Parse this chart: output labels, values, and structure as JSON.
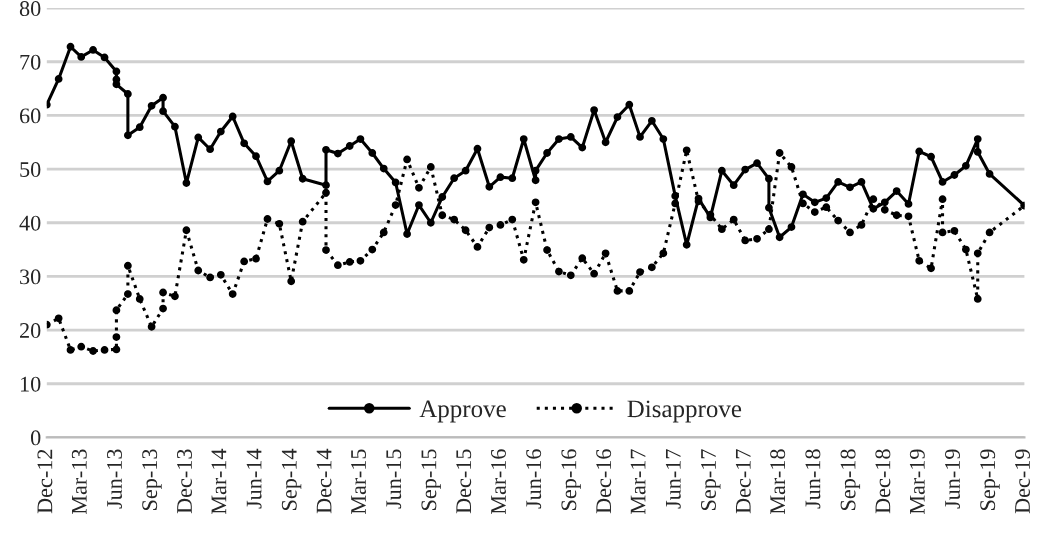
{
  "chart_data": {
    "type": "line",
    "xlim": [
      "2012-12",
      "2019-12"
    ],
    "xticks": [
      {
        "value": "2012-12",
        "label": "Dec-12"
      },
      {
        "value": "2013-03",
        "label": "Mar-13"
      },
      {
        "value": "2013-06",
        "label": "Jun-13"
      },
      {
        "value": "2013-09",
        "label": "Sep-13"
      },
      {
        "value": "2013-12",
        "label": "Dec-13"
      },
      {
        "value": "2014-03",
        "label": "Mar-14"
      },
      {
        "value": "2014-06",
        "label": "Jun-14"
      },
      {
        "value": "2014-09",
        "label": "Sep-14"
      },
      {
        "value": "2014-12",
        "label": "Dec-14"
      },
      {
        "value": "2015-03",
        "label": "Mar-15"
      },
      {
        "value": "2015-06",
        "label": "Jun-15"
      },
      {
        "value": "2015-09",
        "label": "Sep-15"
      },
      {
        "value": "2015-12",
        "label": "Dec-15"
      },
      {
        "value": "2016-03",
        "label": "Mar-16"
      },
      {
        "value": "2016-06",
        "label": "Jun-16"
      },
      {
        "value": "2016-09",
        "label": "Sep-16"
      },
      {
        "value": "2016-12",
        "label": "Dec-16"
      },
      {
        "value": "2017-03",
        "label": "Mar-17"
      },
      {
        "value": "2017-06",
        "label": "Jun-17"
      },
      {
        "value": "2017-09",
        "label": "Sep-17"
      },
      {
        "value": "2017-12",
        "label": "Dec-17"
      },
      {
        "value": "2018-03",
        "label": "Mar-18"
      },
      {
        "value": "2018-06",
        "label": "Jun-18"
      },
      {
        "value": "2018-09",
        "label": "Sep-18"
      },
      {
        "value": "2018-12",
        "label": "Dec-18"
      },
      {
        "value": "2019-03",
        "label": "Mar-19"
      },
      {
        "value": "2019-06",
        "label": "Jun-19"
      },
      {
        "value": "2019-09",
        "label": "Sep-19"
      },
      {
        "value": "2019-12",
        "label": "Dec-19"
      }
    ],
    "ylim": [
      0,
      80
    ],
    "yticks": [
      0,
      10,
      20,
      30,
      40,
      50,
      60,
      70,
      80
    ],
    "grid": "y",
    "legend": "bottom",
    "marker": "circle",
    "series": [
      {
        "name": "Approve",
        "color": "#000000",
        "line_style": "solid",
        "x": [
          "2012-12",
          "2013-01",
          "2013-02",
          "2013-03",
          "2013-04",
          "2013-05",
          "2013-06",
          "2013-06",
          "2013-06",
          "2013-07",
          "2013-07",
          "2013-08",
          "2013-09",
          "2013-10",
          "2013-10",
          "2013-11",
          "2013-12",
          "2014-01",
          "2014-02",
          "2014-03",
          "2014-04",
          "2014-05",
          "2014-06",
          "2014-07",
          "2014-08",
          "2014-09",
          "2014-10",
          "2014-12",
          "2014-12",
          "2015-01",
          "2015-02",
          "2015-03",
          "2015-04",
          "2015-05",
          "2015-06",
          "2015-07",
          "2015-08",
          "2015-09",
          "2015-10",
          "2015-11",
          "2015-12",
          "2016-01",
          "2016-02",
          "2016-03",
          "2016-04",
          "2016-05",
          "2016-06",
          "2016-06",
          "2016-07",
          "2016-08",
          "2016-09",
          "2016-10",
          "2016-11",
          "2016-12",
          "2017-01",
          "2017-02",
          "2017-03",
          "2017-04",
          "2017-05",
          "2017-06",
          "2017-07",
          "2017-08",
          "2017-09",
          "2017-10",
          "2017-11",
          "2017-12",
          "2018-01",
          "2018-02",
          "2018-02",
          "2018-03",
          "2018-04",
          "2018-05",
          "2018-06",
          "2018-07",
          "2018-08",
          "2018-09",
          "2018-10",
          "2018-11",
          "2018-12",
          "2019-01",
          "2019-02",
          "2019-03",
          "2019-04",
          "2019-05",
          "2019-06",
          "2019-07",
          "2019-08",
          "2019-08",
          "2019-09",
          "2019-12"
        ],
        "values": [
          62,
          66.8,
          72.8,
          70.9,
          72.2,
          70.8,
          68.2,
          66.7,
          65.8,
          64,
          56.3,
          57.8,
          61.8,
          63.3,
          60.8,
          57.9,
          47.4,
          55.9,
          53.7,
          57,
          59.8,
          54.8,
          52.4,
          47.7,
          49.7,
          55.2,
          48.2,
          47,
          53.6,
          52.9,
          54.3,
          55.6,
          53,
          50.1,
          47.5,
          37.9,
          43.3,
          40,
          44.8,
          48.3,
          49.7,
          53.8,
          46.7,
          48.5,
          48.3,
          55.6,
          47.9,
          49.7,
          53,
          55.6,
          56,
          54,
          61,
          55,
          59.7,
          62,
          56,
          59,
          55.6,
          45,
          35.9,
          44.5,
          41,
          49.7,
          47,
          49.9,
          51.1,
          48.2,
          42.8,
          37.3,
          39.2,
          45.3,
          43.8,
          44.6,
          47.6,
          46.6,
          47.6,
          42.6,
          43.8,
          45.9,
          43.5,
          53.3,
          52.3,
          47.6,
          48.9,
          50.6,
          55.6,
          53.2,
          49.1,
          43.2
        ]
      },
      {
        "name": "Disapprove",
        "color": "#000000",
        "line_style": "dotted",
        "x": [
          "2012-12",
          "2013-01",
          "2013-02",
          "2013-03",
          "2013-04",
          "2013-05",
          "2013-06",
          "2013-06",
          "2013-06",
          "2013-07",
          "2013-07",
          "2013-08",
          "2013-09",
          "2013-10",
          "2013-10",
          "2013-11",
          "2013-12",
          "2014-01",
          "2014-02",
          "2014-03",
          "2014-04",
          "2014-05",
          "2014-06",
          "2014-07",
          "2014-08",
          "2014-09",
          "2014-10",
          "2014-12",
          "2014-12",
          "2015-01",
          "2015-02",
          "2015-03",
          "2015-04",
          "2015-05",
          "2015-06",
          "2015-07",
          "2015-08",
          "2015-09",
          "2015-10",
          "2015-11",
          "2015-12",
          "2016-01",
          "2016-02",
          "2016-03",
          "2016-04",
          "2016-05",
          "2016-06",
          "2016-07",
          "2016-08",
          "2016-09",
          "2016-10",
          "2016-11",
          "2016-12",
          "2017-01",
          "2017-02",
          "2017-03",
          "2017-04",
          "2017-05",
          "2017-06",
          "2017-07",
          "2017-08",
          "2017-09",
          "2017-10",
          "2017-11",
          "2017-12",
          "2018-01",
          "2018-02",
          "2018-03",
          "2018-04",
          "2018-05",
          "2018-06",
          "2018-07",
          "2018-08",
          "2018-09",
          "2018-10",
          "2018-11",
          "2018-12",
          "2019-01",
          "2019-02",
          "2019-03",
          "2019-04",
          "2019-05",
          "2019-05",
          "2019-06",
          "2019-07",
          "2019-08",
          "2019-08",
          "2019-09",
          "2019-12"
        ],
        "values": [
          21,
          22.2,
          16.3,
          16.9,
          16.1,
          16.3,
          16.4,
          18.7,
          23.7,
          26.7,
          32,
          25.8,
          20.6,
          24,
          27,
          26.3,
          38.6,
          31.1,
          29.8,
          30.3,
          26.7,
          32.8,
          33.3,
          40.7,
          39.8,
          29.1,
          40.2,
          45.6,
          34.9,
          32.1,
          32.7,
          32.9,
          35,
          38.2,
          43.3,
          51.8,
          46.5,
          50.4,
          41.4,
          40.6,
          38.6,
          35.5,
          39.1,
          39.6,
          40.6,
          33.1,
          43.8,
          34.9,
          30.9,
          30.2,
          33.4,
          30.5,
          34.3,
          27.3,
          27.3,
          30.8,
          31.7,
          34.3,
          43.6,
          53.5,
          44,
          41.5,
          38.8,
          40.6,
          36.7,
          37,
          38.8,
          53,
          50.4,
          43.6,
          42,
          42.9,
          40.4,
          38.2,
          39.6,
          44.4,
          42.4,
          41.4,
          41.2,
          32.9,
          31.5,
          44.4,
          38.2,
          38.5,
          35,
          25.8,
          34.3,
          38.2,
          43.2
        ]
      }
    ]
  }
}
